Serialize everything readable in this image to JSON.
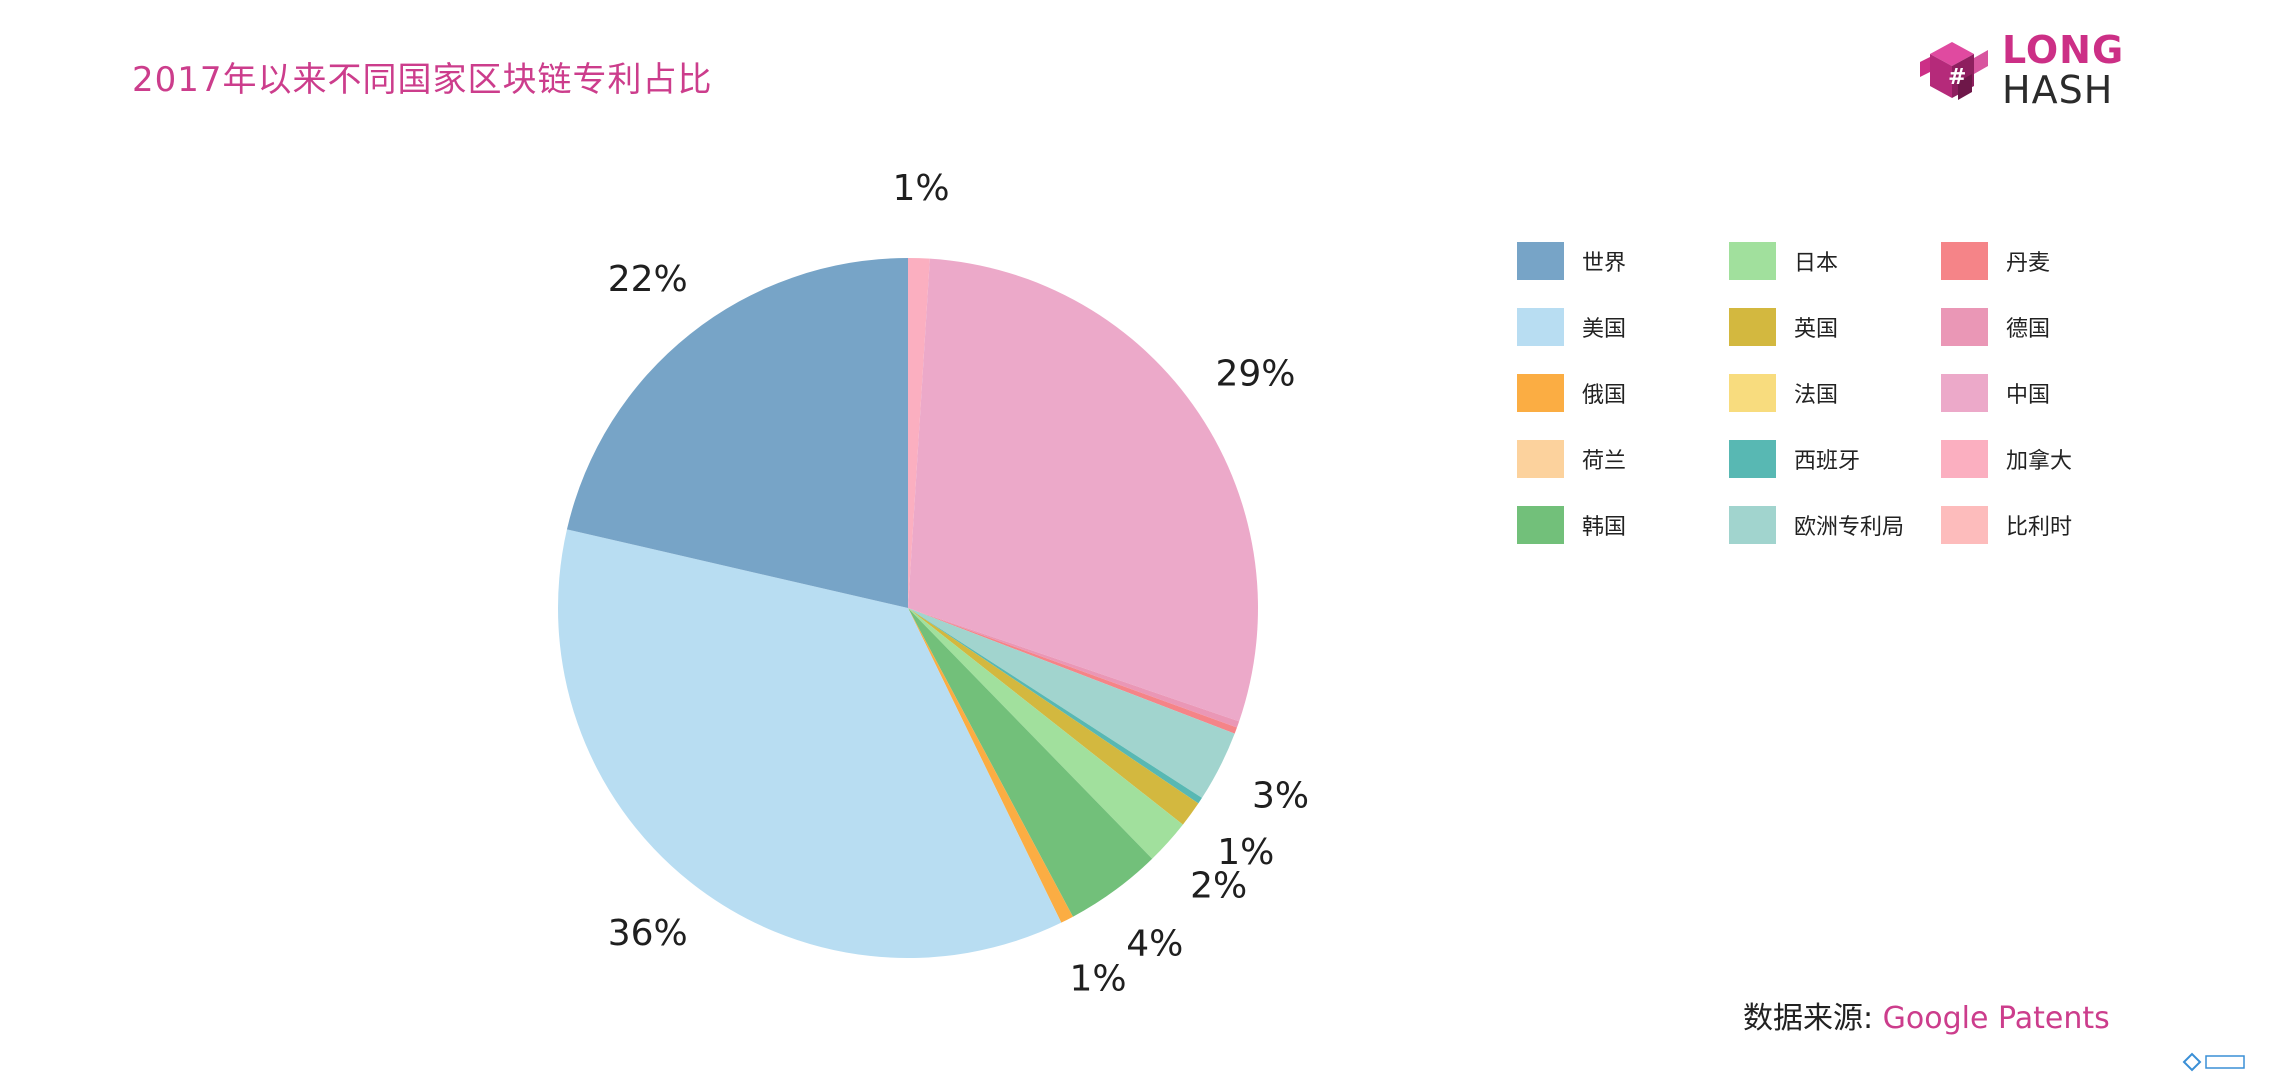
{
  "title": "2017年以来不同国家区块链专利占比",
  "logo": {
    "line1": "LONG",
    "line2": "HASH"
  },
  "source": {
    "label": "数据来源: ",
    "link": "Google Patents"
  },
  "chart_data": {
    "type": "pie",
    "title": "2017年以来不同国家区块链专利占比",
    "start": "top, clockwise",
    "slices": [
      {
        "name": "加拿大",
        "value": 1.0,
        "label": "1%",
        "color": "#fbafc0"
      },
      {
        "name": "中国",
        "value": 29.4,
        "label": "29%",
        "color": "#eca9c9"
      },
      {
        "name": "德国",
        "value": 0.3,
        "label": "",
        "color": "#ea97b6"
      },
      {
        "name": "丹麦",
        "value": 0.3,
        "label": "",
        "color": "#f58488"
      },
      {
        "name": "欧洲专利局",
        "value": 3.3,
        "label": "3%",
        "color": "#a1d4ce"
      },
      {
        "name": "西班牙",
        "value": 0.3,
        "label": "",
        "color": "#58b8b3"
      },
      {
        "name": "英国",
        "value": 1.2,
        "label": "1%",
        "color": "#d3b83f"
      },
      {
        "name": "日本",
        "value": 2.1,
        "label": "2%",
        "color": "#a1e09d"
      },
      {
        "name": "韩国",
        "value": 4.5,
        "label": "4%",
        "color": "#72c07a"
      },
      {
        "name": "俄国",
        "value": 0.6,
        "label": "1%",
        "color": "#fbad43"
      },
      {
        "name": "美国",
        "value": 36.0,
        "label": "36%",
        "color": "#b8ddf2"
      },
      {
        "name": "世界",
        "value": 21.5,
        "label": "22%",
        "color": "#77a4c7"
      }
    ],
    "legend": {
      "placement": "right",
      "columns": [
        [
          {
            "label": "世界",
            "color": "#77a4c7"
          },
          {
            "label": "美国",
            "color": "#b8ddf2"
          },
          {
            "label": "俄国",
            "color": "#fbad43"
          },
          {
            "label": "荷兰",
            "color": "#fcd29d"
          },
          {
            "label": "韩国",
            "color": "#72c07a"
          }
        ],
        [
          {
            "label": "日本",
            "color": "#a1e09d"
          },
          {
            "label": "英国",
            "color": "#d3b83f"
          },
          {
            "label": "法国",
            "color": "#f8dc7e"
          },
          {
            "label": "西班牙",
            "color": "#58b8b3"
          },
          {
            "label": "欧洲专利局",
            "color": "#a1d4ce"
          }
        ],
        [
          {
            "label": "丹麦",
            "color": "#f58488"
          },
          {
            "label": "德国",
            "color": "#ea97b6"
          },
          {
            "label": "中国",
            "color": "#eca9c9"
          },
          {
            "label": "加拿大",
            "color": "#fbafc0"
          },
          {
            "label": "比利时",
            "color": "#fdbcbc"
          }
        ]
      ]
    }
  }
}
